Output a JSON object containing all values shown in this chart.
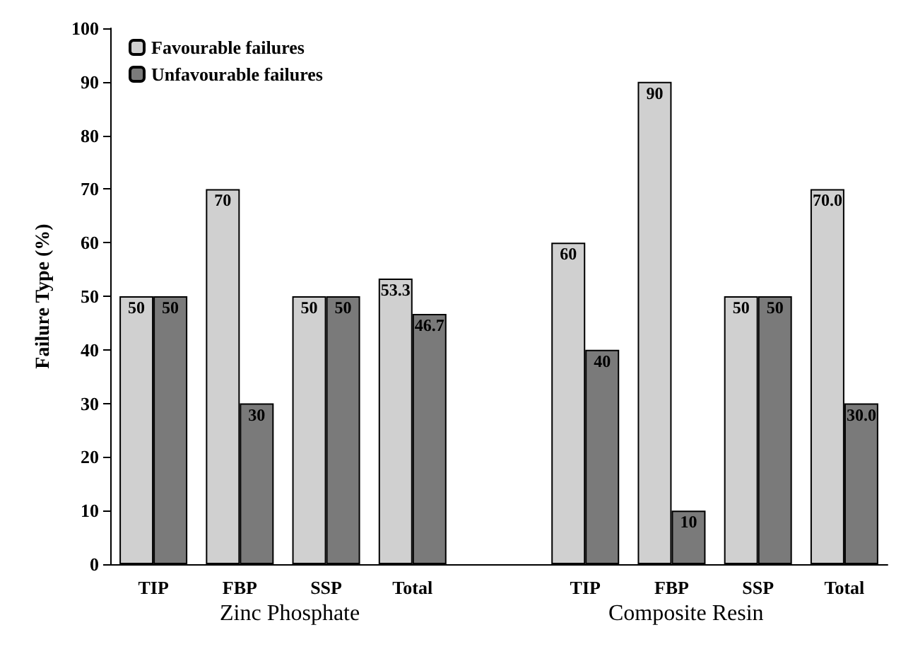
{
  "chart_data": {
    "type": "bar",
    "ylabel": "Failure Type (%)",
    "categories": [
      "TIP",
      "FBP",
      "SSP",
      "Total",
      null,
      "TIP",
      "FBP",
      "SSP",
      "Total"
    ],
    "series": [
      {
        "name": "Favourable failures",
        "color": "#d0d0d0",
        "values": [
          50,
          70,
          50,
          53.3,
          null,
          60,
          90,
          50,
          70.0
        ],
        "value_labels": [
          "50",
          "70",
          "50",
          "53.3",
          null,
          "60",
          "90",
          "50",
          "70.0"
        ]
      },
      {
        "name": "Unfavourable failures",
        "color": "#7a7a7a",
        "values": [
          50,
          30,
          50,
          46.7,
          null,
          40,
          10,
          50,
          30.0
        ],
        "value_labels": [
          "50",
          "30",
          "50",
          "46.7",
          null,
          "40",
          "10",
          "50",
          "30.0"
        ]
      }
    ],
    "ylim": [
      0,
      100
    ],
    "yticks": [
      0,
      10,
      20,
      30,
      40,
      50,
      60,
      70,
      80,
      90,
      100
    ],
    "grid": false,
    "legend": "top left",
    "annotations": [
      "Zinc Phosphate",
      "Composite Resin"
    ]
  }
}
